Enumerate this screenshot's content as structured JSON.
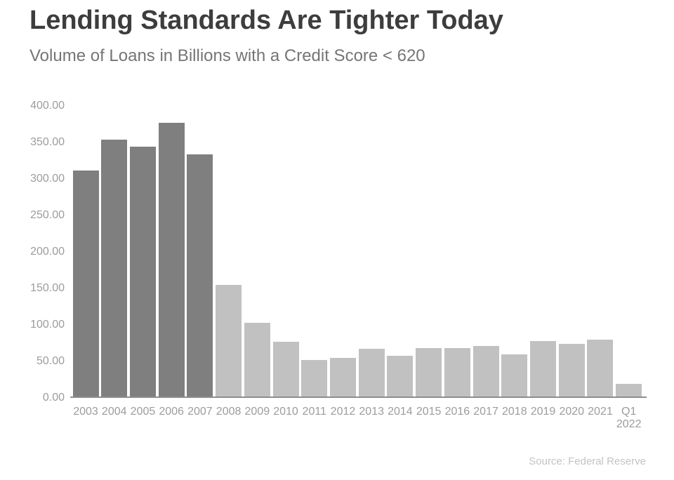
{
  "page": {
    "title": "Lending Standards Are Tighter Today",
    "subtitle": "Volume of Loans in Billions with a Credit Score < 620",
    "source": "Source: Federal Reserve"
  },
  "colors": {
    "background": "#ffffff",
    "title_text": "#3d3d3d",
    "subtitle_text": "#757575",
    "axis_text": "#9c9c9c",
    "axis_line": "#8e8e8e",
    "bar_dark": "#7f7f7f",
    "bar_light": "#c1c1c1",
    "source_text": "#c3c3c3"
  },
  "chart_data": {
    "type": "bar",
    "title": "Lending Standards Are Tighter Today",
    "subtitle": "Volume of Loans in Billions with a Credit Score < 620",
    "source": "Source: Federal Reserve",
    "xlabel": "",
    "ylabel": "",
    "ylim": [
      0,
      400
    ],
    "y_tick_labels": [
      "0.00",
      "50.00",
      "100.00",
      "150.00",
      "200.00",
      "250.00",
      "300.00",
      "350.00",
      "400.00"
    ],
    "grid": false,
    "legend": false,
    "categories": [
      "2003",
      "2004",
      "2005",
      "2006",
      "2007",
      "2008",
      "2009",
      "2010",
      "2011",
      "2012",
      "2013",
      "2014",
      "2015",
      "2016",
      "2017",
      "2018",
      "2019",
      "2020",
      "2021",
      "Q1 2022"
    ],
    "values": [
      311,
      353,
      343,
      376,
      333,
      154,
      102,
      76,
      51,
      54,
      66,
      57,
      67,
      67,
      70,
      59,
      77,
      73,
      79,
      18
    ],
    "bar_shades": [
      "dark",
      "dark",
      "dark",
      "dark",
      "dark",
      "light",
      "light",
      "light",
      "light",
      "light",
      "light",
      "light",
      "light",
      "light",
      "light",
      "light",
      "light",
      "light",
      "light",
      "light"
    ]
  }
}
